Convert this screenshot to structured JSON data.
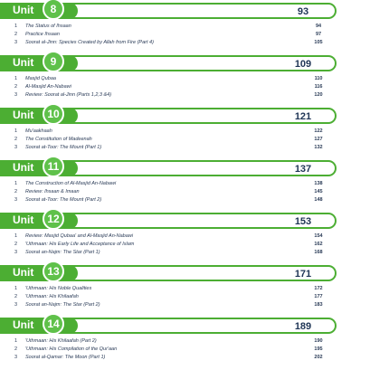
{
  "units": [
    {
      "label": "Unit",
      "number": "8",
      "page": "93",
      "lessons": [
        {
          "num": "1",
          "title": "The Status of Ihsaan",
          "page": "94"
        },
        {
          "num": "2",
          "title": "Practice Ihsaan",
          "page": "97"
        },
        {
          "num": "3",
          "title": "Soorat al-Jinn: Species Created by Allah from Fire (Part 4)",
          "page": "105"
        }
      ]
    },
    {
      "label": "Unit",
      "number": "9",
      "page": "109",
      "lessons": [
        {
          "num": "1",
          "title": "Masjid Qubaa",
          "page": "110"
        },
        {
          "num": "2",
          "title": "Al-Masjid An-Nabawi",
          "page": "116"
        },
        {
          "num": "3",
          "title": "Review: Soorat al-Jinn (Parts 1,2,3 &4)",
          "page": "120"
        }
      ]
    },
    {
      "label": "Unit",
      "number": "10",
      "page": "121",
      "lessons": [
        {
          "num": "1",
          "title": "Mu'aakhaah",
          "page": "122"
        },
        {
          "num": "2",
          "title": "The Constitution of Madeenah",
          "page": "127"
        },
        {
          "num": "3",
          "title": "Soorat at-Toor: The Mount (Part 1)",
          "page": "132"
        }
      ]
    },
    {
      "label": "Unit",
      "number": "11",
      "page": "137",
      "lessons": [
        {
          "num": "1",
          "title": "The Construction of Al-Masjid An-Nabawi",
          "page": "138"
        },
        {
          "num": "2",
          "title": "Review: Ihsaan & Imaan",
          "page": "145"
        },
        {
          "num": "3",
          "title": "Soorat at-Toor: The Mount (Part 2)",
          "page": "148"
        }
      ]
    },
    {
      "label": "Unit",
      "number": "12",
      "page": "153",
      "lessons": [
        {
          "num": "1",
          "title": "Review: Masjid Qubaa' and Al-Masjid An-Nabawi",
          "page": "154"
        },
        {
          "num": "2",
          "title": "'Uthmaan: His Early Life and Acceptance of Islam",
          "page": "162"
        },
        {
          "num": "3",
          "title": "Soorat an-Najm: The Star (Part 1)",
          "page": "168"
        }
      ]
    },
    {
      "label": "Unit",
      "number": "13",
      "page": "171",
      "lessons": [
        {
          "num": "1",
          "title": "'Uthmaan: His Noble Qualities",
          "page": "172"
        },
        {
          "num": "2",
          "title": "'Uthmaan: His Khilaafah",
          "page": "177"
        },
        {
          "num": "3",
          "title": "Soorat an-Najm: The Star (Part 2)",
          "page": "183"
        }
      ]
    },
    {
      "label": "Unit",
      "number": "14",
      "page": "189",
      "lessons": [
        {
          "num": "1",
          "title": "'Uthmaan: His Khilaafah (Part 2)",
          "page": "190"
        },
        {
          "num": "2",
          "title": "'Uthmaan: His Compilation of the Qur'aan",
          "page": "195"
        },
        {
          "num": "3",
          "title": "Soorat al-Qamar: The Moon (Part 1)",
          "page": "202"
        }
      ]
    }
  ]
}
